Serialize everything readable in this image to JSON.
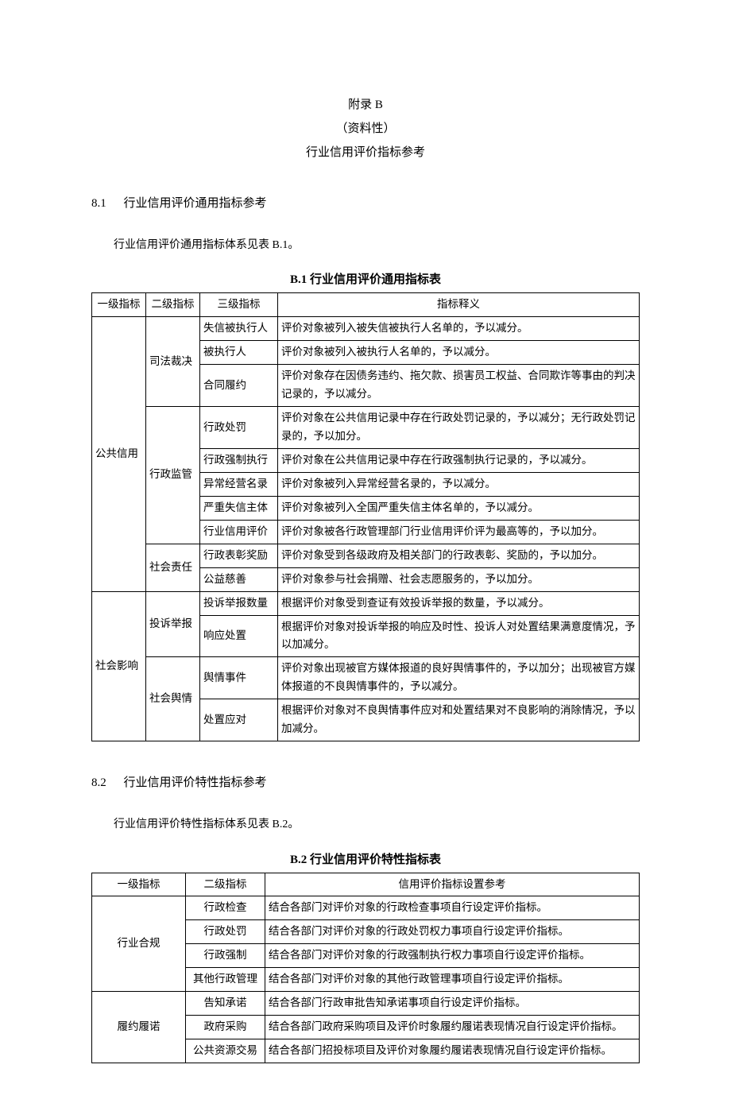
{
  "header": {
    "annex": "附录 B",
    "kind": "（资料性）",
    "title": "行业信用评价指标参考"
  },
  "section1": {
    "number": "8.1",
    "title": "行业信用评价通用指标参考",
    "intro": "行业信用评价通用指标体系见表 B.1。",
    "caption": "B.1 行业信用评价通用指标表",
    "headers": {
      "h1": "一级指标",
      "h2": "二级指标",
      "h3": "三级指标",
      "h4": "指标释义"
    },
    "groups": [
      {
        "l1": "公共信用",
        "subs": [
          {
            "l2": "司法裁决",
            "rows": [
              {
                "l3": "失信被执行人",
                "desc": "评价对象被列入被失信被执行人名单的，予以减分。"
              },
              {
                "l3": "被执行人",
                "desc": "评价对象被列入被执行人名单的，予以减分。"
              },
              {
                "l3": "合同履约",
                "desc": "评价对象存在因债务违约、拖欠款、损害员工权益、合同欺诈等事由的判决记录的，予以减分。"
              }
            ]
          },
          {
            "l2": "行政监管",
            "rows": [
              {
                "l3": "行政处罚",
                "desc": "评价对象在公共信用记录中存在行政处罚记录的，予以减分；无行政处罚记录的，予以加分。"
              },
              {
                "l3": "行政强制执行",
                "desc": "评价对象在公共信用记录中存在行政强制执行记录的，予以减分。"
              },
              {
                "l3": "异常经营名录",
                "desc": "评价对象被列入异常经营名录的，予以减分。"
              },
              {
                "l3": "严重失信主体",
                "desc": "评价对象被列入全国严重失信主体名单的，予以减分。"
              },
              {
                "l3": "行业信用评价",
                "desc": "评价对象被各行政管理部门行业信用评价评为最高等的，予以加分。"
              }
            ]
          },
          {
            "l2": "社会责任",
            "rows": [
              {
                "l3": "行政表彰奖励",
                "desc": "评价对象受到各级政府及相关部门的行政表彰、奖励的，予以加分。"
              },
              {
                "l3": "公益慈善",
                "desc": "评价对象参与社会捐赠、社会志愿服务的，予以加分。"
              }
            ]
          }
        ]
      },
      {
        "l1": "社会影响",
        "subs": [
          {
            "l2": "投诉举报",
            "rows": [
              {
                "l3": "投诉举报数量",
                "desc": "根据评价对象受到查证有效投诉举报的数量，予以减分。"
              },
              {
                "l3": "响应处置",
                "desc": "根据评价对象对投诉举报的响应及时性、投诉人对处置结果满意度情况，予以加减分。"
              }
            ]
          },
          {
            "l2": "社会舆情",
            "rows": [
              {
                "l3": "舆情事件",
                "desc": "评价对象出现被官方媒体报道的良好舆情事件的，予以加分；出现被官方媒体报道的不良舆情事件的，予以减分。"
              },
              {
                "l3": "处置应对",
                "desc": "根据评价对象对不良舆情事件应对和处置结果对不良影响的消除情况，予以加减分。"
              }
            ]
          }
        ]
      }
    ]
  },
  "section2": {
    "number": "8.2",
    "title": "行业信用评价特性指标参考",
    "intro": "行业信用评价特性指标体系见表 B.2。",
    "caption": "B.2 行业信用评价特性指标表",
    "headers": {
      "h1": "一级指标",
      "h2": "二级指标",
      "h3": "信用评价指标设置参考"
    },
    "groups": [
      {
        "l1": "行业合规",
        "rows": [
          {
            "l2": "行政检查",
            "desc": "结合各部门对评价对象的行政检查事项自行设定评价指标。"
          },
          {
            "l2": "行政处罚",
            "desc": "结合各部门对评价对象的行政处罚权力事项自行设定评价指标。"
          },
          {
            "l2": "行政强制",
            "desc": "结合各部门对评价对象的行政强制执行权力事项自行设定评价指标。"
          },
          {
            "l2": "其他行政管理",
            "desc": "结合各部门对评价对象的其他行政管理事项自行设定评价指标。"
          }
        ]
      },
      {
        "l1": "履约履诺",
        "rows": [
          {
            "l2": "告知承诺",
            "desc": "结合各部门行政审批告知承诺事项自行设定评价指标。"
          },
          {
            "l2": "政府采购",
            "desc": "结合各部门政府采购项目及评价时象履约履诺表现情况自行设定评价指标。"
          },
          {
            "l2": "公共资源交易",
            "desc": "结合各部门招投标项目及评价对象履约履诺表现情况自行设定评价指标。"
          }
        ]
      }
    ]
  }
}
